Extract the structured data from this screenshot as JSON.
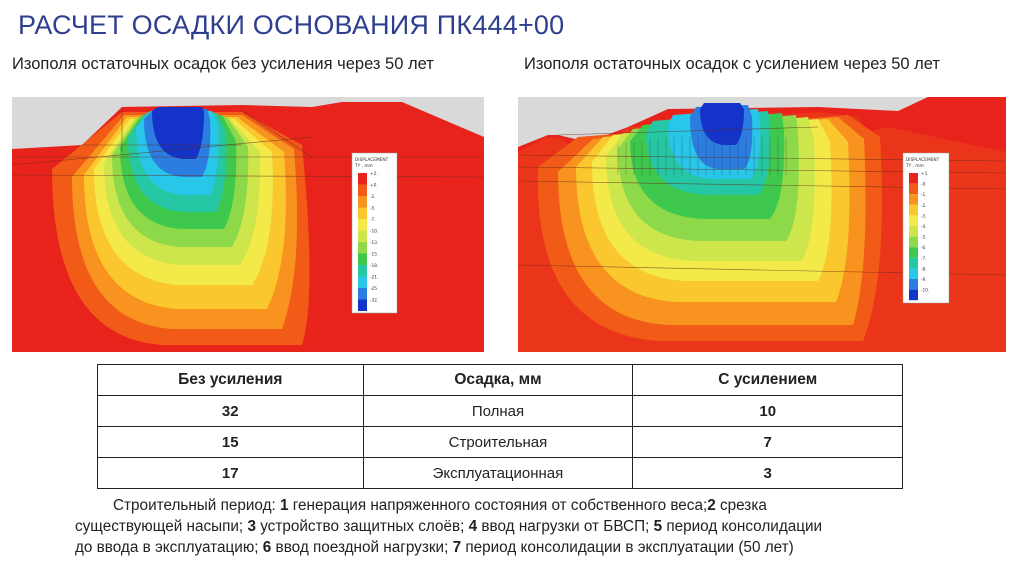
{
  "title": "РАСЧЕТ ОСАДКИ ОСНОВАНИЯ ПК444+00",
  "left_panel": {
    "heading": "Изополя остаточных осадок без усиления через 50 лет",
    "legend_title": "DISPLACEMENT",
    "legend_unit": "TY , mm",
    "legend_ticks": [
      "+2.",
      "+0.",
      "-2.",
      "-5.",
      "-7.",
      "-10.",
      "-13.",
      "-15.",
      "-18.",
      "-21.",
      "-25.",
      "-32."
    ]
  },
  "right_panel": {
    "heading": "Изополя остаточных осадок с усилением через 50 лет",
    "legend_title": "DISPLACEMENT",
    "legend_unit": "TY , mm",
    "legend_ticks": [
      "+1.",
      "-0.",
      "-1.",
      "-2.",
      "-3.",
      "-4.",
      "-5.",
      "-6.",
      "-7.",
      "-8.",
      "-9.",
      "-10."
    ]
  },
  "colors": {
    "title": "#2e3f8f",
    "contour_scale": [
      "#e8231c",
      "#f25a18",
      "#f7931e",
      "#fbc72e",
      "#f3ea4a",
      "#cde64b",
      "#8ed94a",
      "#3fc84e",
      "#26c7a5",
      "#28c6e8",
      "#2b7de0",
      "#1433c8"
    ]
  },
  "table": {
    "headers": [
      "Без усиления",
      "Осадка, мм",
      "С усилением"
    ],
    "rows": [
      [
        "32",
        "Полная",
        "10"
      ],
      [
        "15",
        "Строительная",
        "7"
      ],
      [
        "17",
        "Эксплуатационная",
        "3"
      ]
    ]
  },
  "note": {
    "l1_a": "Строительный период: ",
    "l1_n1": "1",
    "l1_b": " генерация напряженного состояния от собственного веса;",
    "l1_n2": "2",
    "l1_c": " срезка",
    "l2_a": "существующей насыпи; ",
    "l2_n3": "3",
    "l2_b": " устройство защитных слоёв; ",
    "l2_n4": "4",
    "l2_c": " ввод нагрузки от БВСП; ",
    "l2_n5": "5",
    "l2_d": " период консолидации",
    "l3_a": "до ввода в эксплуатацию; ",
    "l3_n6": "6",
    "l3_b": "  ввод поездной нагрузки; ",
    "l3_n7": "7",
    "l3_c": " период консолидации в эксплуатации (50 лет)"
  }
}
